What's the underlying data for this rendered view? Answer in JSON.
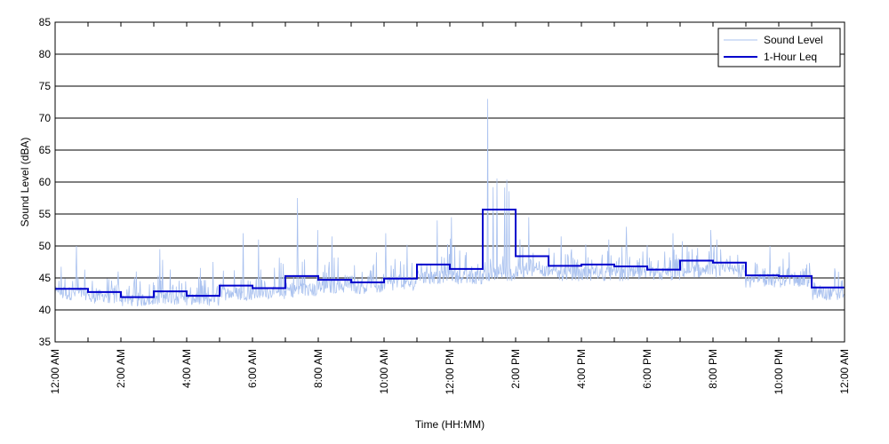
{
  "chart_data": {
    "type": "line",
    "xlabel": "Time (HH:MM)",
    "ylabel": "Sound Level (dBA)",
    "ylim": [
      35,
      85
    ],
    "yticks": [
      35,
      40,
      45,
      50,
      55,
      60,
      65,
      70,
      75,
      80,
      85
    ],
    "xlim": [
      0,
      24
    ],
    "xticks": [
      {
        "hour": 0,
        "label": "12:00 AM"
      },
      {
        "hour": 2,
        "label": "2:00 AM"
      },
      {
        "hour": 4,
        "label": "4:00 AM"
      },
      {
        "hour": 6,
        "label": "6:00 AM"
      },
      {
        "hour": 8,
        "label": "8:00 AM"
      },
      {
        "hour": 10,
        "label": "10:00 AM"
      },
      {
        "hour": 12,
        "label": "12:00 PM"
      },
      {
        "hour": 14,
        "label": "2:00 PM"
      },
      {
        "hour": 16,
        "label": "4:00 PM"
      },
      {
        "hour": 18,
        "label": "6:00 PM"
      },
      {
        "hour": 20,
        "label": "8:00 PM"
      },
      {
        "hour": 22,
        "label": "10:00 PM"
      },
      {
        "hour": 24,
        "label": "12:00 AM"
      }
    ],
    "grid": "horizontal",
    "legend_position": "top-right",
    "series": [
      {
        "name": "Sound Level",
        "color": "#a9c1ef",
        "style": "thin",
        "hourly_envelope": [
          {
            "hour": 0,
            "base": 41.5,
            "peak": 50
          },
          {
            "hour": 1,
            "base": 41,
            "peak": 46
          },
          {
            "hour": 2,
            "base": 40.5,
            "peak": 46
          },
          {
            "hour": 3,
            "base": 40.8,
            "peak": 49.5
          },
          {
            "hour": 4,
            "base": 40.5,
            "peak": 47.5
          },
          {
            "hour": 5,
            "base": 41.5,
            "peak": 52
          },
          {
            "hour": 6,
            "base": 41.5,
            "peak": 51
          },
          {
            "hour": 7,
            "base": 42,
            "peak": 57.5
          },
          {
            "hour": 8,
            "base": 42.5,
            "peak": 51.5
          },
          {
            "hour": 9,
            "base": 42.5,
            "peak": 49
          },
          {
            "hour": 10,
            "base": 43,
            "peak": 52
          },
          {
            "hour": 11,
            "base": 44,
            "peak": 54
          },
          {
            "hour": 12,
            "base": 44,
            "peak": 54.5
          },
          {
            "hour": 13,
            "base": 44.5,
            "peak": 73
          },
          {
            "hour": 14,
            "base": 45,
            "peak": 54.5
          },
          {
            "hour": 15,
            "base": 44.5,
            "peak": 51.5
          },
          {
            "hour": 16,
            "base": 44.5,
            "peak": 51
          },
          {
            "hour": 17,
            "base": 44.5,
            "peak": 53
          },
          {
            "hour": 18,
            "base": 44.5,
            "peak": 52
          },
          {
            "hour": 19,
            "base": 45,
            "peak": 52.5
          },
          {
            "hour": 20,
            "base": 45,
            "peak": 51
          },
          {
            "hour": 21,
            "base": 43.5,
            "peak": 50
          },
          {
            "hour": 22,
            "base": 43.5,
            "peak": 49
          },
          {
            "hour": 23,
            "base": 41.5,
            "peak": 46.5
          }
        ]
      },
      {
        "name": "1-Hour Leq",
        "color": "#0000cc",
        "style": "step",
        "x": [
          0,
          1,
          2,
          3,
          4,
          5,
          6,
          7,
          8,
          9,
          10,
          11,
          12,
          13,
          14,
          15,
          16,
          17,
          18,
          19,
          20,
          21,
          22,
          23
        ],
        "values": [
          43.3,
          42.8,
          42.0,
          42.9,
          42.2,
          43.8,
          43.4,
          45.3,
          44.7,
          44.3,
          44.9,
          47.1,
          46.4,
          55.7,
          48.4,
          46.9,
          47.1,
          46.8,
          46.3,
          47.7,
          47.4,
          45.4,
          45.3,
          43.5
        ]
      }
    ]
  }
}
